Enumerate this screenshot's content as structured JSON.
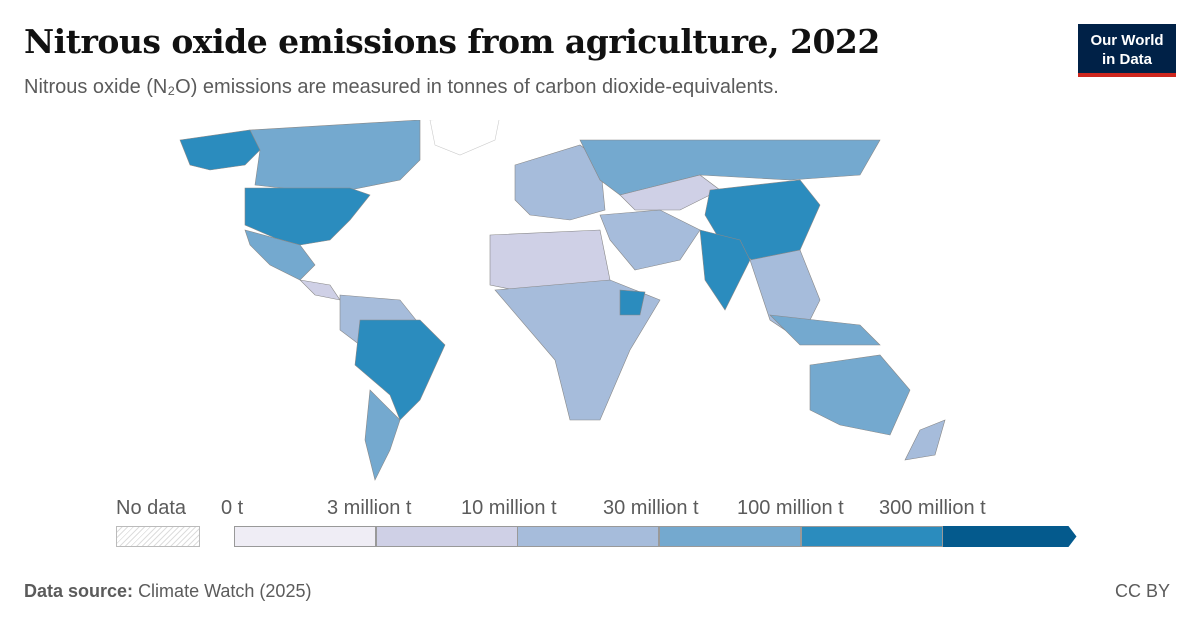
{
  "header": {
    "title": "Nitrous oxide emissions from agriculture, 2022",
    "subtitle": "Nitrous oxide (N₂O) emissions are measured in tonnes of carbon dioxide-equivalents."
  },
  "logo": {
    "line1": "Our World",
    "line2": "in Data"
  },
  "legend": {
    "no_data": "No data",
    "labels": [
      "0 t",
      "3 million t",
      "10 million t",
      "30 million t",
      "100 million t",
      "300 million t"
    ],
    "colors": [
      "#efedf5",
      "#cfd0e6",
      "#a6bcdb",
      "#74a9cf",
      "#2b8cbe",
      "#045a8d"
    ]
  },
  "footer": {
    "source_label": "Data source:",
    "source": "Climate Watch (2025)",
    "license": "CC BY"
  }
}
